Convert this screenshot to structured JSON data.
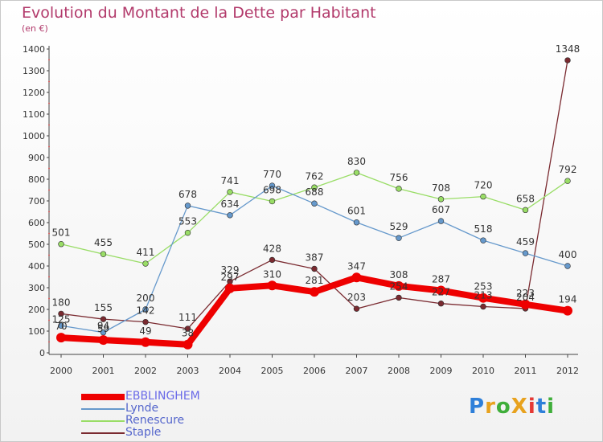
{
  "title": "Evolution du Montant de la Dette par Habitant",
  "unit": "(en €)",
  "logo": {
    "text": "ProXiti",
    "colors": [
      "#2e7fd9",
      "#e8a21e",
      "#3fae3a",
      "#e8a21e",
      "#e53935",
      "#2e7fd9",
      "#3fae3a"
    ]
  },
  "chart_data": {
    "type": "line",
    "title": "Evolution du Montant de la Dette par Habitant",
    "ylabel": "(en €)",
    "xlabel": "",
    "categories": [
      "2000",
      "2001",
      "2002",
      "2003",
      "2004",
      "2005",
      "2006",
      "2007",
      "2008",
      "2009",
      "2010",
      "2011",
      "2012"
    ],
    "ylim": [
      0,
      1400
    ],
    "yticks": [
      0,
      100,
      200,
      300,
      400,
      500,
      600,
      700,
      800,
      900,
      1000,
      1100,
      1200,
      1300,
      1400
    ],
    "grid": false,
    "legend_position": "bottom-left",
    "series": [
      {
        "name": "EBBLINGHEM",
        "color": "#ee0000",
        "values": [
          70,
          59,
          49,
          38,
          297,
          310,
          281,
          347,
          308,
          287,
          253,
          223,
          194
        ],
        "labels": [
          "70",
          "59",
          "49",
          "38",
          "297",
          "310",
          "281",
          "347",
          "308",
          "287",
          "253",
          "223",
          "194"
        ]
      },
      {
        "name": "Lynde",
        "color": "#6699cc",
        "values": [
          125,
          94,
          200,
          678,
          634,
          770,
          688,
          601,
          529,
          607,
          518,
          459,
          400
        ],
        "labels": [
          "125",
          "94",
          "200",
          "678",
          "634",
          "770",
          "688",
          "601",
          "529",
          "607",
          "518",
          "459",
          "400"
        ]
      },
      {
        "name": "Renescure",
        "color": "#99dd66",
        "values": [
          501,
          455,
          411,
          553,
          741,
          698,
          762,
          830,
          756,
          708,
          720,
          658,
          792
        ],
        "labels": [
          "501",
          "455",
          "411",
          "553",
          "741",
          "698",
          "762",
          "830",
          "756",
          "708",
          "720",
          "658",
          "792"
        ]
      },
      {
        "name": "Staple",
        "color": "#7a2a30",
        "values": [
          180,
          155,
          142,
          111,
          329,
          428,
          387,
          203,
          254,
          227,
          213,
          204,
          1348
        ],
        "labels": [
          "180",
          "155",
          "142",
          "111",
          "329",
          "428",
          "387",
          "203",
          "254",
          "227",
          "213",
          "204",
          "1348"
        ]
      }
    ]
  }
}
